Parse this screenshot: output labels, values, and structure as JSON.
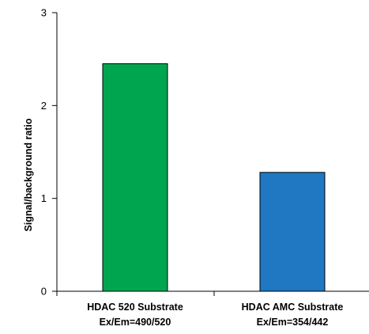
{
  "chart_data": {
    "type": "bar",
    "title": "",
    "xlabel": "",
    "ylabel": "Signal/background ratio",
    "ylim": [
      0,
      3
    ],
    "yticks": [
      0,
      1,
      2,
      3
    ],
    "grid": false,
    "categories": [
      [
        "HDAC 520 Substrate",
        "Ex/Em=490/520"
      ],
      [
        "HDAC AMC Substrate",
        "Ex/Em=354/442"
      ]
    ],
    "values": [
      2.45,
      1.28
    ],
    "colors": [
      "#00a64f",
      "#1f78c1"
    ],
    "edge_color": "#000000"
  }
}
